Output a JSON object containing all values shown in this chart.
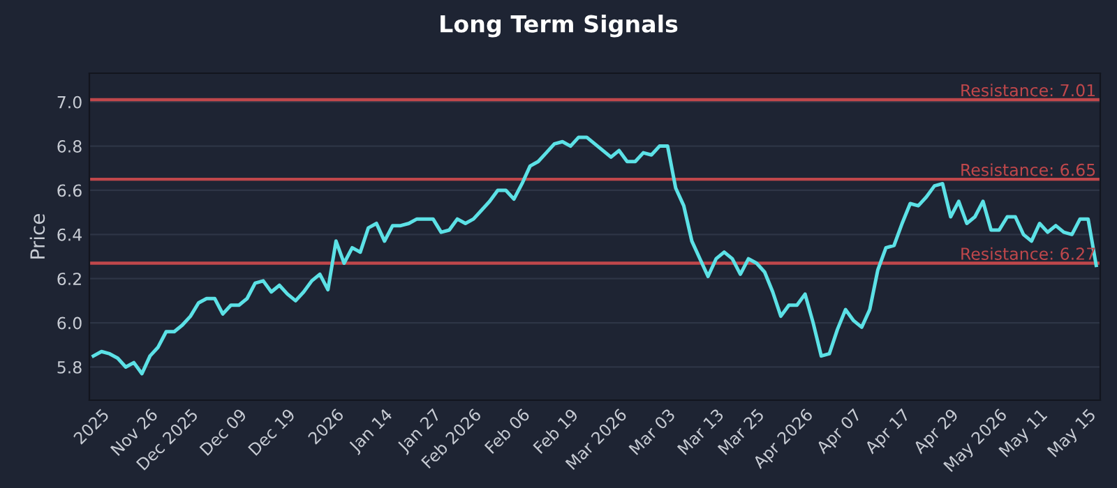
{
  "chart_data": {
    "type": "line",
    "title": "Long Term Signals",
    "ylabel": "Price",
    "categories": [
      null,
      "2025",
      null,
      null,
      null,
      null,
      null,
      "Nov 26",
      null,
      null,
      null,
      null,
      "Dec 2025",
      null,
      null,
      null,
      null,
      null,
      "Dec 09",
      null,
      null,
      null,
      null,
      null,
      "Dec 19",
      null,
      null,
      null,
      null,
      null,
      "2026",
      null,
      null,
      null,
      null,
      null,
      "Jan 14",
      null,
      null,
      null,
      null,
      null,
      "Jan 27",
      null,
      null,
      null,
      null,
      "Feb 2026",
      null,
      null,
      null,
      null,
      null,
      "Feb 06",
      null,
      null,
      null,
      null,
      null,
      "Feb 19",
      null,
      null,
      null,
      null,
      null,
      "Mar 2026",
      null,
      null,
      null,
      null,
      null,
      "Mar 03",
      null,
      null,
      null,
      null,
      null,
      "Mar 13",
      null,
      null,
      null,
      null,
      "Mar 25",
      null,
      null,
      null,
      null,
      null,
      "Apr 2026",
      null,
      null,
      null,
      null,
      null,
      "Apr 07",
      null,
      null,
      null,
      null,
      null,
      "Apr 17",
      null,
      null,
      null,
      null,
      null,
      "Apr 29",
      null,
      null,
      null,
      null,
      null,
      "May 2026",
      null,
      null,
      null,
      null,
      "May 11",
      null,
      null,
      null,
      null,
      null,
      "May 15",
      null
    ],
    "series": [
      {
        "color": "#5ce1e6",
        "values": [
          5.85,
          5.87,
          5.86,
          5.84,
          5.8,
          5.82,
          5.77,
          5.85,
          5.89,
          5.96,
          5.96,
          5.99,
          6.03,
          6.09,
          6.11,
          6.11,
          6.04,
          6.08,
          6.08,
          6.11,
          6.18,
          6.19,
          6.14,
          6.17,
          6.13,
          6.1,
          6.14,
          6.19,
          6.22,
          6.15,
          6.37,
          6.27,
          6.34,
          6.32,
          6.43,
          6.45,
          6.37,
          6.44,
          6.44,
          6.45,
          6.47,
          6.47,
          6.47,
          6.41,
          6.42,
          6.47,
          6.45,
          6.47,
          6.51,
          6.55,
          6.6,
          6.6,
          6.56,
          6.63,
          6.71,
          6.73,
          6.77,
          6.81,
          6.82,
          6.8,
          6.84,
          6.84,
          6.81,
          6.78,
          6.75,
          6.78,
          6.73,
          6.73,
          6.77,
          6.76,
          6.8,
          6.8,
          6.61,
          6.53,
          6.37,
          6.29,
          6.21,
          6.29,
          6.32,
          6.29,
          6.22,
          6.29,
          6.27,
          6.23,
          6.14,
          6.03,
          6.08,
          6.08,
          6.13,
          6.0,
          5.85,
          5.86,
          5.97,
          6.06,
          6.01,
          5.98,
          6.06,
          6.24,
          6.34,
          6.35,
          6.45,
          6.54,
          6.53,
          6.57,
          6.62,
          6.63,
          6.48,
          6.55,
          6.45,
          6.48,
          6.55,
          6.42,
          6.42,
          6.48,
          6.48,
          6.4,
          6.37,
          6.45,
          6.41,
          6.44,
          6.41,
          6.4,
          6.47,
          6.47,
          6.26
        ]
      }
    ],
    "ylim": [
      5.65,
      7.13
    ],
    "yticks": [
      5.8,
      {
        "value": 6.0,
        "label": "6.0"
      },
      6.2,
      6.4,
      6.6,
      6.8,
      {
        "value": 7.0,
        "label": "7.0"
      }
    ],
    "ref_lines": [
      {
        "axis": "y",
        "value": 7.01,
        "label": "Resistance: 7.01",
        "color": "#c0474b"
      },
      {
        "axis": "y",
        "value": 6.65,
        "label": "Resistance: 6.65",
        "color": "#c0474b"
      },
      {
        "axis": "y",
        "value": 6.27,
        "label": "Resistance: 6.27",
        "color": "#c0474b"
      }
    ],
    "grid": "y",
    "line_style": "solid",
    "marker": "none"
  }
}
